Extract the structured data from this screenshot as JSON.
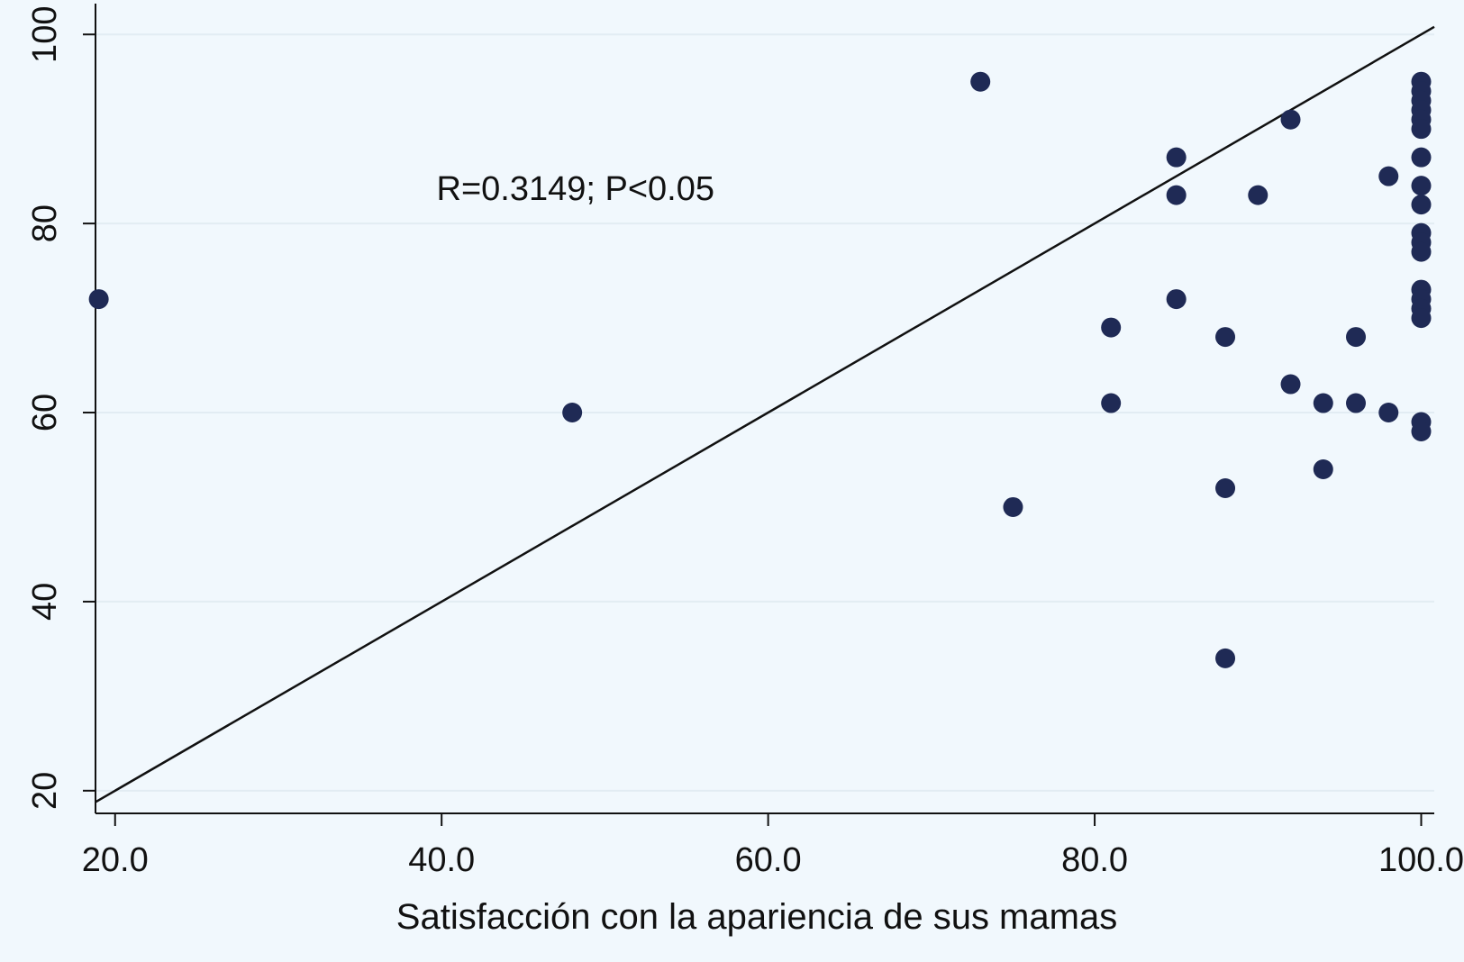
{
  "chart_data": {
    "type": "scatter",
    "title": "",
    "xlabel": "Satisfacción con la apariencia de sus mamas",
    "ylabel": "",
    "xlim": [
      18.8,
      100.8
    ],
    "ylim": [
      17.6,
      102.5
    ],
    "xticks": [
      20,
      40,
      60,
      80,
      100
    ],
    "xtick_labels": [
      "20.0",
      "40.0",
      "60.0",
      "80.0",
      "100.0"
    ],
    "yticks": [
      20,
      40,
      60,
      80,
      100
    ],
    "ytick_labels": [
      "20",
      "40",
      "60",
      "80",
      "100"
    ],
    "grid": "horizontal",
    "annotation": {
      "text": "R=0.3149; P<0.05",
      "x": 48.2,
      "y": 82.5
    },
    "reference_line": {
      "x": [
        18.8,
        100.8
      ],
      "y": [
        18.8,
        100.8
      ]
    },
    "marker_color": "#1f2a55",
    "points": [
      {
        "x": 19,
        "y": 72
      },
      {
        "x": 48,
        "y": 60
      },
      {
        "x": 73,
        "y": 95
      },
      {
        "x": 75,
        "y": 50
      },
      {
        "x": 81,
        "y": 69
      },
      {
        "x": 81,
        "y": 61
      },
      {
        "x": 85,
        "y": 87
      },
      {
        "x": 85,
        "y": 83
      },
      {
        "x": 85,
        "y": 72
      },
      {
        "x": 88,
        "y": 68
      },
      {
        "x": 88,
        "y": 52
      },
      {
        "x": 88,
        "y": 34
      },
      {
        "x": 90,
        "y": 83
      },
      {
        "x": 92,
        "y": 91
      },
      {
        "x": 92,
        "y": 63
      },
      {
        "x": 94,
        "y": 61
      },
      {
        "x": 94,
        "y": 54
      },
      {
        "x": 96,
        "y": 68
      },
      {
        "x": 96,
        "y": 61
      },
      {
        "x": 98,
        "y": 85
      },
      {
        "x": 98,
        "y": 60
      },
      {
        "x": 100,
        "y": 95
      },
      {
        "x": 100,
        "y": 94
      },
      {
        "x": 100,
        "y": 93
      },
      {
        "x": 100,
        "y": 92
      },
      {
        "x": 100,
        "y": 91
      },
      {
        "x": 100,
        "y": 90
      },
      {
        "x": 100,
        "y": 87
      },
      {
        "x": 100,
        "y": 84
      },
      {
        "x": 100,
        "y": 82
      },
      {
        "x": 100,
        "y": 79
      },
      {
        "x": 100,
        "y": 78
      },
      {
        "x": 100,
        "y": 77
      },
      {
        "x": 100,
        "y": 73
      },
      {
        "x": 100,
        "y": 72
      },
      {
        "x": 100,
        "y": 71
      },
      {
        "x": 100,
        "y": 70
      },
      {
        "x": 100,
        "y": 59
      },
      {
        "x": 100,
        "y": 58
      }
    ]
  }
}
